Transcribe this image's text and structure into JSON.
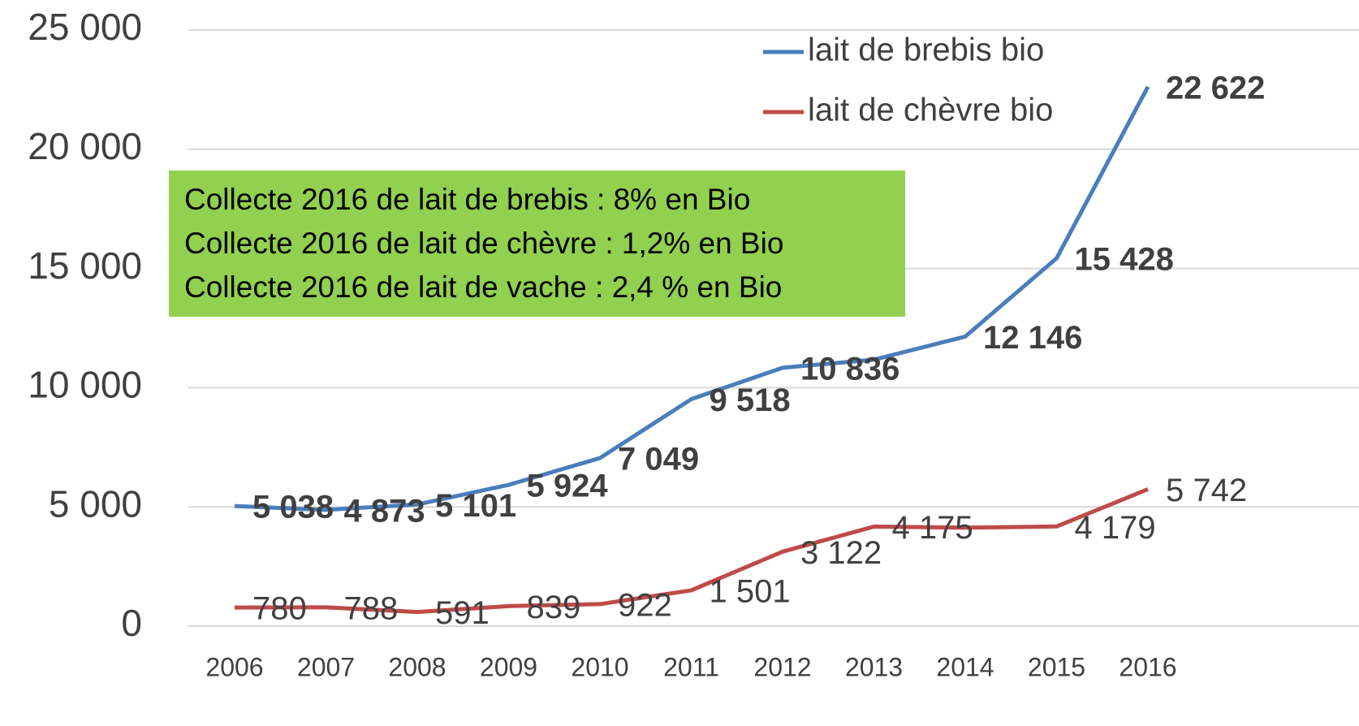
{
  "chart_data": {
    "type": "line",
    "categories": [
      "2006",
      "2007",
      "2008",
      "2009",
      "2010",
      "2011",
      "2012",
      "2013",
      "2014",
      "2015",
      "2016"
    ],
    "series": [
      {
        "name": "lait de brebis bio",
        "color": "#4a7ebb",
        "values": [
          5038,
          4873,
          5101,
          5924,
          7049,
          9518,
          10836,
          11175,
          12146,
          15428,
          22622
        ],
        "value_labels": [
          "5 038",
          "4 873",
          "5 101",
          "5 924",
          "7 049",
          "9 518",
          "10 836",
          null,
          "12 146",
          "15 428",
          "22 622"
        ]
      },
      {
        "name": "lait de chèvre bio",
        "color": "#be4b48",
        "values": [
          780,
          788,
          591,
          839,
          922,
          1501,
          3122,
          4175,
          4130,
          4179,
          5742
        ],
        "value_labels": [
          "780",
          "788",
          "591",
          "839",
          "922",
          "1 501",
          "3 122",
          "4 175",
          null,
          "4 179",
          "5 742"
        ]
      }
    ],
    "ylim": [
      0,
      25000
    ],
    "yticks": [
      0,
      {
        "value": 5000,
        "label": "5 000"
      },
      {
        "value": 10000,
        "label": "10 000"
      },
      {
        "value": 15000,
        "label": "15 000"
      },
      {
        "value": 20000,
        "label": "20 000"
      },
      {
        "value": 25000,
        "label": "25 000"
      }
    ],
    "grid": true,
    "legend": "top-right",
    "annotations": [
      "Collecte 2016 de lait de brebis : 8% en Bio",
      "Collecte 2016 de lait de chèvre : 1,2% en Bio",
      "Collecte 2016 de lait de vache : 2,4 % en Bio"
    ],
    "annotation_color": "#92d050"
  }
}
